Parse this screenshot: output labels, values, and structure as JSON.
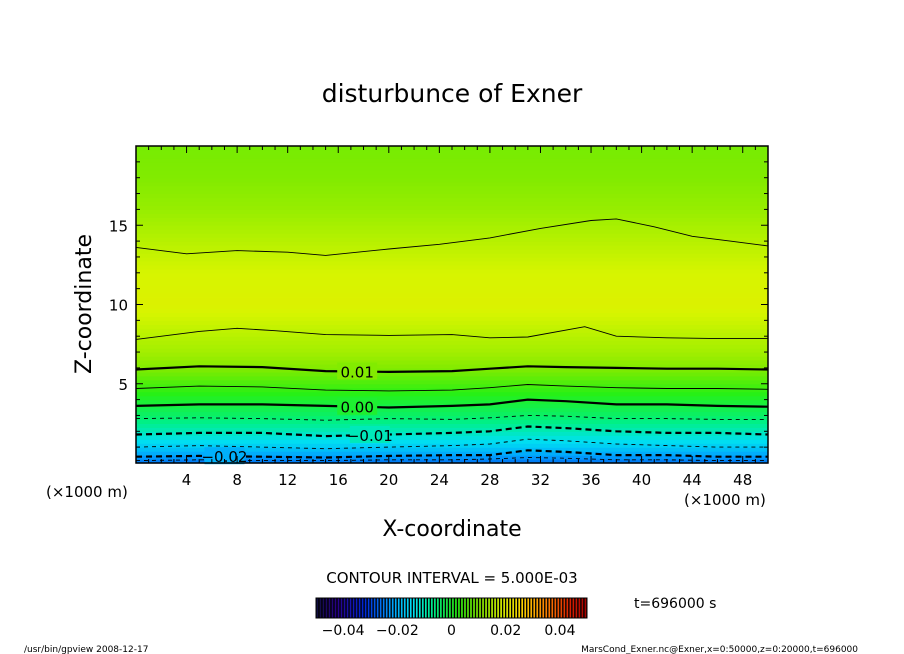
{
  "chart_data": {
    "type": "contour",
    "title": "disturbunce of Exner",
    "xlabel": "X-coordinate",
    "ylabel": "Z-coordinate",
    "x_unit": "(×1000 m)",
    "y_unit": "(×1000 m)",
    "xlim": [
      0,
      50
    ],
    "ylim": [
      0,
      20
    ],
    "x_ticks": [
      4,
      8,
      12,
      16,
      20,
      24,
      28,
      32,
      36,
      40,
      44,
      48
    ],
    "y_ticks": [
      5,
      10,
      15
    ],
    "contour_interval_text": "CONTOUR INTERVAL = 5.000E-03",
    "time_text": "t=696000 s",
    "colorbar": {
      "range": [
        -0.05,
        0.05
      ],
      "tick_values": [
        -0.04,
        -0.02,
        0,
        0.02,
        0.04
      ],
      "tick_labels": [
        "−0.04",
        "−0.02",
        "0",
        "0.02",
        "0.04"
      ]
    },
    "field_profile": [
      {
        "z": 0.0,
        "value": -0.026
      },
      {
        "z": 1.0,
        "value": -0.017
      },
      {
        "z": 2.0,
        "value": -0.01
      },
      {
        "z": 3.0,
        "value": -0.004
      },
      {
        "z": 4.0,
        "value": 0.0
      },
      {
        "z": 5.0,
        "value": 0.005
      },
      {
        "z": 6.0,
        "value": 0.01
      },
      {
        "z": 7.0,
        "value": 0.013
      },
      {
        "z": 8.0,
        "value": 0.015
      },
      {
        "z": 10.0,
        "value": 0.019
      },
      {
        "z": 12.0,
        "value": 0.018
      },
      {
        "z": 14.0,
        "value": 0.015
      },
      {
        "z": 16.0,
        "value": 0.012
      },
      {
        "z": 18.0,
        "value": 0.01
      },
      {
        "z": 20.0,
        "value": 0.009
      }
    ],
    "contours": [
      {
        "level": -0.025,
        "label": "",
        "dashed": true,
        "bold": false,
        "x": [
          0,
          5,
          10,
          15,
          20,
          25,
          28,
          31,
          34,
          38,
          42,
          46,
          50
        ],
        "z": [
          0.15,
          0.2,
          0.15,
          0.15,
          0.2,
          0.2,
          0.25,
          0.35,
          0.3,
          0.2,
          0.2,
          0.15,
          0.15
        ]
      },
      {
        "level": -0.02,
        "label": "−0.02",
        "label_x": 7,
        "dashed": true,
        "bold": true,
        "x": [
          0,
          5,
          10,
          15,
          20,
          25,
          28,
          31,
          34,
          38,
          42,
          46,
          50
        ],
        "z": [
          0.4,
          0.45,
          0.4,
          0.35,
          0.45,
          0.5,
          0.5,
          0.8,
          0.7,
          0.5,
          0.5,
          0.4,
          0.4
        ]
      },
      {
        "level": -0.015,
        "label": "",
        "dashed": true,
        "bold": false,
        "x": [
          0,
          5,
          10,
          15,
          20,
          25,
          28,
          31,
          34,
          38,
          42,
          46,
          50
        ],
        "z": [
          1.0,
          1.1,
          1.0,
          0.9,
          1.0,
          1.1,
          1.2,
          1.5,
          1.4,
          1.2,
          1.1,
          1.0,
          1.0
        ]
      },
      {
        "level": -0.01,
        "label": "−0.01",
        "label_x": 18.5,
        "dashed": true,
        "bold": true,
        "x": [
          0,
          5,
          10,
          15,
          20,
          25,
          28,
          31,
          34,
          38,
          42,
          46,
          50
        ],
        "z": [
          1.8,
          1.9,
          1.9,
          1.7,
          1.8,
          1.9,
          2.0,
          2.3,
          2.2,
          2.0,
          1.9,
          1.9,
          1.8
        ]
      },
      {
        "level": -0.005,
        "label": "",
        "dashed": true,
        "bold": false,
        "x": [
          0,
          5,
          10,
          15,
          20,
          25,
          28,
          31,
          34,
          38,
          42,
          46,
          50
        ],
        "z": [
          2.8,
          2.85,
          2.8,
          2.7,
          2.8,
          2.75,
          2.85,
          3.0,
          2.95,
          2.8,
          2.8,
          2.75,
          2.75
        ]
      },
      {
        "level": 0.0,
        "label": "0.00",
        "label_x": 17.5,
        "dashed": false,
        "bold": true,
        "x": [
          0,
          5,
          10,
          15,
          20,
          25,
          28,
          31,
          34,
          38,
          42,
          46,
          50
        ],
        "z": [
          3.6,
          3.7,
          3.7,
          3.6,
          3.5,
          3.6,
          3.7,
          4.0,
          3.9,
          3.7,
          3.7,
          3.6,
          3.55
        ]
      },
      {
        "level": 0.005,
        "label": "",
        "dashed": false,
        "bold": false,
        "x": [
          0,
          5,
          10,
          15,
          20,
          25,
          28,
          31,
          34,
          38,
          42,
          46,
          50
        ],
        "z": [
          4.7,
          4.85,
          4.8,
          4.6,
          4.55,
          4.6,
          4.75,
          4.95,
          4.85,
          4.75,
          4.7,
          4.7,
          4.65
        ]
      },
      {
        "level": 0.01,
        "label": "0.01",
        "label_x": 17.5,
        "dashed": false,
        "bold": true,
        "x": [
          0,
          5,
          10,
          15,
          20,
          25,
          28,
          31,
          34,
          38,
          42,
          46,
          50
        ],
        "z": [
          5.9,
          6.1,
          6.05,
          5.8,
          5.75,
          5.8,
          5.95,
          6.1,
          6.05,
          6.0,
          5.95,
          5.95,
          5.9
        ]
      },
      {
        "level": 0.015,
        "label": "",
        "dashed": false,
        "bold": false,
        "x": [
          0,
          5,
          8,
          11,
          15,
          20,
          25,
          28,
          31,
          35.5,
          38,
          42,
          46,
          50
        ],
        "z": [
          7.8,
          8.3,
          8.5,
          8.35,
          8.1,
          8.05,
          8.1,
          7.9,
          7.95,
          8.6,
          8.0,
          7.9,
          7.85,
          7.85
        ]
      },
      {
        "level": 0.015,
        "label": "",
        "dashed": false,
        "bold": false,
        "x": [
          0,
          4,
          8,
          12,
          15,
          20,
          24,
          28,
          32,
          36,
          38,
          41,
          44,
          47,
          50
        ],
        "z": [
          13.6,
          13.2,
          13.4,
          13.3,
          13.1,
          13.5,
          13.8,
          14.2,
          14.8,
          15.3,
          15.4,
          14.9,
          14.3,
          14.0,
          13.7
        ]
      }
    ]
  },
  "footer": {
    "left": "/usr/bin/gpview   2008-12-17",
    "right": "MarsCond_Exner.nc@Exner,x=0:50000,z=0:20000,t=696000"
  }
}
